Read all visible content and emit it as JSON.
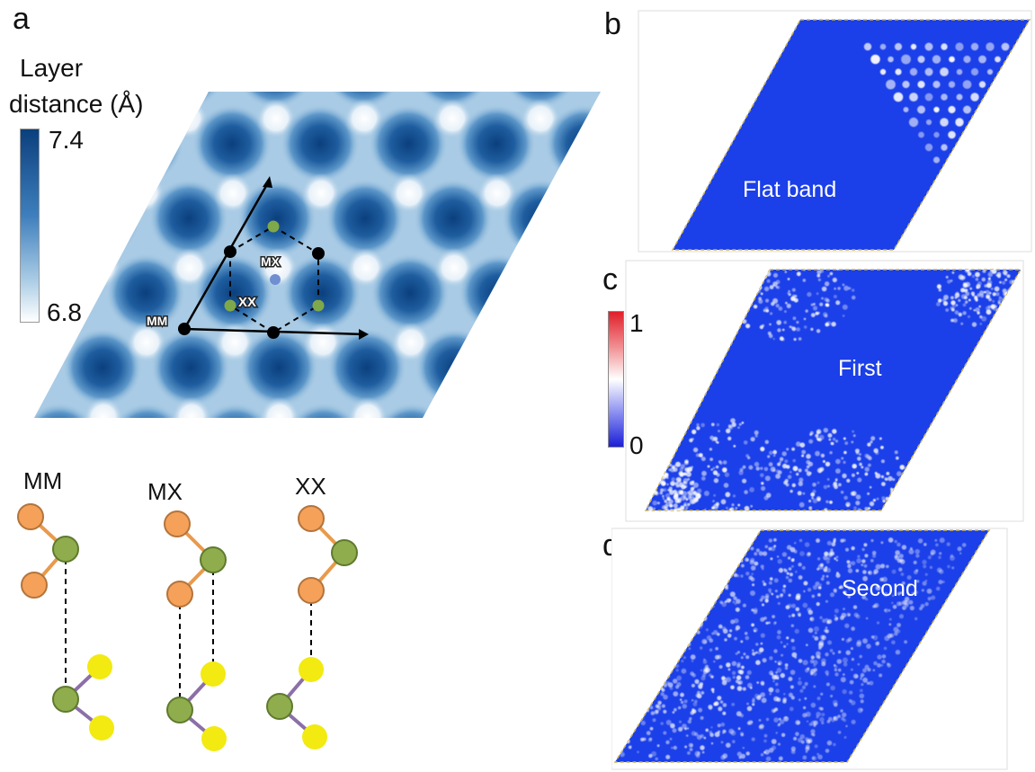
{
  "panels": {
    "a": "a",
    "b": "b",
    "c": "c",
    "d": "d"
  },
  "colorbar_a": {
    "title_line1": "Layer",
    "title_line2": "distance (Å)",
    "max_label": "7.4",
    "min_label": "6.8",
    "color_high": "#0b3f7d",
    "color_low": "#ffffff"
  },
  "moire": {
    "site_labels": {
      "mm": "MM",
      "mx": "MX",
      "xx": "XX"
    },
    "background_color": "#a9cbe5",
    "dark_color": "#0b3f7d",
    "light_color": "#ffffff"
  },
  "stacking": {
    "labels": [
      "MM",
      "MX",
      "XX"
    ],
    "metal_color": "#f5a15a",
    "chalcogen_color": "#8fad4c",
    "selenium_color": "#f2ea11",
    "bond_top_color": "#e89a4c",
    "bond_bottom_color": "#8c6fa8"
  },
  "colorbar_c": {
    "max_label": "1",
    "min_label": "0",
    "color_high": "#e0202a",
    "color_mid": "#ffffff",
    "color_low": "#1a1fd6"
  },
  "wavefunctions": [
    {
      "label": "Flat band"
    },
    {
      "label": "First"
    },
    {
      "label": "Second"
    }
  ],
  "wavefunction_base_color": "#1b3fe8"
}
